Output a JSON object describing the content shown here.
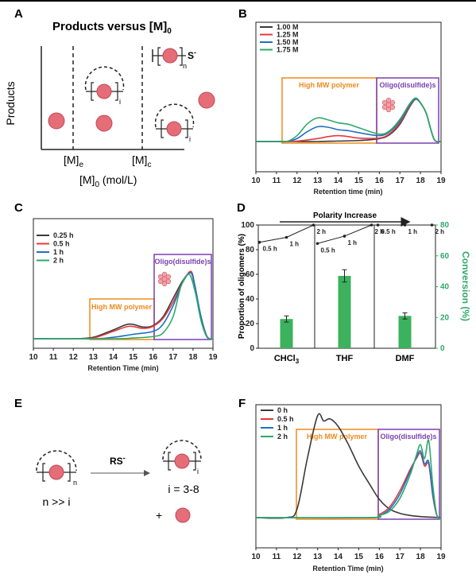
{
  "panels": {
    "A": {
      "letter": "A",
      "title": "Products versus [M]",
      "title_sub": "0",
      "ylabel": "Products",
      "xlabel": "[M]",
      "xlabel_sub": "0",
      "xlabel_unit": " (mol/L)",
      "tick_e": "[M]",
      "tick_e_sub": "e",
      "tick_c": "[M]",
      "tick_c_sub": "c",
      "sub_i": "i",
      "sub_n": "n",
      "s_label": "S",
      "s_sup": "-"
    },
    "B": {
      "letter": "B",
      "box1": "High MW polymer",
      "box2": "Oligo(disulfide)s"
    },
    "C": {
      "letter": "C",
      "box1": "High MW polymer",
      "box2": "Oligo(disulfide)s"
    },
    "D": {
      "letter": "D",
      "arrow_label": "Polarity Increase"
    },
    "E": {
      "letter": "E",
      "reagent": "RS",
      "reagent_sup": "-",
      "sub_n": "n",
      "sub_i": "i",
      "left_caption": "n >> i",
      "right_caption": "i = 3-8",
      "plus": "+"
    },
    "F": {
      "letter": "F",
      "box1": "High MW polymer",
      "box2": "Oligo(disulfide)s"
    }
  },
  "colors": {
    "black": "#3a3a3a",
    "red": "#e8393c",
    "blue": "#1f6fc4",
    "green": "#2fa86a",
    "orange": "#f08a1c",
    "purple": "#7b3fb0",
    "bead": "#e46d78",
    "bar": "#3cb15e"
  },
  "chart_data": [
    {
      "panel": "B",
      "type": "line",
      "xlabel": "Retention time (min)",
      "xlim": [
        10,
        19
      ],
      "xticks": [
        "10",
        "11",
        "12",
        "13",
        "14",
        "15",
        "16",
        "17",
        "18",
        "19"
      ],
      "series": [
        {
          "name": "1.00 M",
          "color": "#3a3a3a",
          "x": [
            10,
            11,
            11.5,
            12,
            13,
            14,
            15,
            16,
            16.5,
            17,
            17.5,
            17.8,
            18.1,
            18.3,
            18.5,
            18.7,
            19
          ],
          "y": [
            0,
            0,
            0,
            0,
            0,
            0.01,
            0.02,
            0.06,
            0.14,
            0.35,
            0.72,
            0.86,
            0.72,
            0.55,
            0.25,
            0.02,
            0
          ]
        },
        {
          "name": "1.25 M",
          "color": "#e8393c",
          "x": [
            10,
            11,
            11.5,
            12,
            13,
            13.5,
            14,
            14.5,
            15,
            16,
            16.5,
            17,
            17.5,
            17.8,
            18.1,
            18.3,
            18.5,
            18.7,
            19
          ],
          "y": [
            0,
            0,
            0,
            0.01,
            0.06,
            0.1,
            0.12,
            0.1,
            0.07,
            0.07,
            0.16,
            0.38,
            0.74,
            0.86,
            0.72,
            0.55,
            0.25,
            0.02,
            0
          ]
        },
        {
          "name": "1.50 M",
          "color": "#1f6fc4",
          "x": [
            10,
            11,
            11.5,
            12,
            12.5,
            13,
            13.5,
            14,
            14.5,
            15,
            16,
            16.5,
            17,
            17.5,
            17.8,
            18.1,
            18.3,
            18.5,
            18.7,
            19
          ],
          "y": [
            0,
            0,
            0,
            0.06,
            0.2,
            0.3,
            0.29,
            0.24,
            0.22,
            0.18,
            0.12,
            0.2,
            0.42,
            0.76,
            0.86,
            0.72,
            0.55,
            0.25,
            0.02,
            0
          ]
        },
        {
          "name": "1.75 M",
          "color": "#2fa86a",
          "x": [
            10,
            11,
            11.5,
            12,
            12.5,
            13,
            13.5,
            14,
            14.5,
            15,
            16,
            16.5,
            17,
            17.5,
            17.8,
            18.1,
            18.3,
            18.5,
            18.7,
            19
          ],
          "y": [
            0,
            0,
            0,
            0.12,
            0.36,
            0.48,
            0.44,
            0.38,
            0.35,
            0.28,
            0.15,
            0.22,
            0.45,
            0.78,
            0.88,
            0.72,
            0.55,
            0.25,
            0.02,
            0
          ]
        }
      ]
    },
    {
      "panel": "C",
      "type": "line",
      "xlabel": "Retention Time (min)",
      "xlim": [
        10,
        19
      ],
      "xticks": [
        "10",
        "11",
        "12",
        "13",
        "14",
        "15",
        "16",
        "17",
        "18",
        "19"
      ],
      "series": [
        {
          "name": "0.25 h",
          "color": "#3a3a3a",
          "x": [
            10,
            12,
            13,
            14,
            14.8,
            15.5,
            16,
            16.5,
            17,
            17.5,
            17.9,
            18.1,
            18.4,
            18.7,
            19
          ],
          "y": [
            0,
            0,
            0.02,
            0.12,
            0.2,
            0.16,
            0.18,
            0.3,
            0.55,
            0.8,
            0.9,
            0.7,
            0.3,
            0.03,
            0
          ]
        },
        {
          "name": "0.5 h",
          "color": "#e8393c",
          "x": [
            10,
            12,
            13,
            14,
            14.8,
            15.5,
            16,
            16.5,
            17,
            17.5,
            17.9,
            18.1,
            18.4,
            18.7,
            19
          ],
          "y": [
            0,
            0,
            0.01,
            0.1,
            0.17,
            0.14,
            0.17,
            0.28,
            0.5,
            0.78,
            0.92,
            0.7,
            0.3,
            0.03,
            0
          ]
        },
        {
          "name": "1 h",
          "color": "#1f6fc4",
          "x": [
            10,
            13,
            14,
            15,
            16,
            16.5,
            17,
            17.5,
            17.9,
            18.1,
            18.4,
            18.7,
            19
          ],
          "y": [
            0,
            0,
            0.02,
            0.06,
            0.1,
            0.2,
            0.45,
            0.78,
            0.9,
            0.72,
            0.3,
            0.03,
            0
          ]
        },
        {
          "name": "2 h",
          "color": "#2fa86a",
          "x": [
            10,
            14,
            15,
            16,
            16.5,
            17,
            17.4,
            17.8,
            18.1,
            18.4,
            18.7,
            19
          ],
          "y": [
            0,
            0,
            0.01,
            0.03,
            0.08,
            0.3,
            0.72,
            0.88,
            0.65,
            0.25,
            0.02,
            0
          ]
        }
      ]
    },
    {
      "panel": "D",
      "type": "bar",
      "categories": [
        "CHCl3",
        "THF",
        "DMF"
      ],
      "category_labels": [
        {
          "text": "CHCl",
          "sub": "3"
        },
        {
          "text": "THF",
          "sub": ""
        },
        {
          "text": "DMF",
          "sub": ""
        }
      ],
      "ylabel": "Proportion of oligomers (%)",
      "ylim": [
        0,
        100
      ],
      "yticks": [
        "0",
        "20",
        "40",
        "60",
        "80",
        "100"
      ],
      "y2label": "Conversion (%)",
      "y2lim": [
        0,
        80
      ],
      "y2ticks": [
        "0",
        "20",
        "40",
        "60",
        "80"
      ],
      "bars": {
        "name": "Conversion",
        "axis": "right",
        "values": [
          19,
          47,
          21
        ],
        "errors": [
          2,
          4,
          2
        ]
      },
      "insets": [
        {
          "labels": [
            "0.5 h",
            "1 h",
            "2 h"
          ],
          "values": [
            86,
            90,
            100
          ]
        },
        {
          "labels": [
            "0.5 h",
            "1 h",
            "2 h"
          ],
          "values": [
            85,
            91,
            100
          ]
        },
        {
          "labels": [
            "0.5 h",
            "1 h",
            "2 h"
          ],
          "values": [
            100,
            100,
            100
          ]
        }
      ]
    },
    {
      "panel": "F",
      "type": "line",
      "xlabel": "Retention Time (min)",
      "xlim": [
        10,
        19
      ],
      "xticks": [
        "10",
        "11",
        "12",
        "13",
        "14",
        "15",
        "16",
        "17",
        "18",
        "19"
      ],
      "series": [
        {
          "name": "0 h",
          "color": "#3a3a3a",
          "x": [
            10,
            11.5,
            12,
            12.5,
            13,
            13.3,
            13.6,
            14,
            14.5,
            15,
            15.5,
            16,
            16.5,
            17,
            17.5,
            18,
            19
          ],
          "y": [
            0,
            0,
            0.08,
            0.55,
            0.95,
            0.9,
            0.92,
            0.85,
            0.68,
            0.48,
            0.32,
            0.17,
            0.08,
            0.04,
            0.02,
            0.01,
            0
          ]
        },
        {
          "name": "0.5 h",
          "color": "#e8393c",
          "x": [
            10,
            15.5,
            16,
            16.5,
            17,
            17.5,
            17.8,
            18,
            18.2,
            18.4,
            18.6,
            18.8,
            19
          ],
          "y": [
            0,
            0,
            0.03,
            0.1,
            0.25,
            0.45,
            0.55,
            0.6,
            0.48,
            0.5,
            0.2,
            0.02,
            0
          ]
        },
        {
          "name": "1 h",
          "color": "#1f6fc4",
          "x": [
            10,
            15.5,
            16,
            16.5,
            17,
            17.5,
            17.8,
            18,
            18.2,
            18.4,
            18.6,
            18.8,
            19
          ],
          "y": [
            0,
            0,
            0.02,
            0.08,
            0.22,
            0.43,
            0.56,
            0.62,
            0.5,
            0.52,
            0.22,
            0.02,
            0
          ]
        },
        {
          "name": "2 h",
          "color": "#2fa86a",
          "x": [
            10,
            15.5,
            16,
            16.5,
            17,
            17.5,
            17.8,
            18,
            18.2,
            18.4,
            18.6,
            18.8,
            19
          ],
          "y": [
            0,
            0,
            0.02,
            0.06,
            0.18,
            0.4,
            0.58,
            0.68,
            0.55,
            0.72,
            0.3,
            0.02,
            0
          ]
        }
      ]
    }
  ]
}
